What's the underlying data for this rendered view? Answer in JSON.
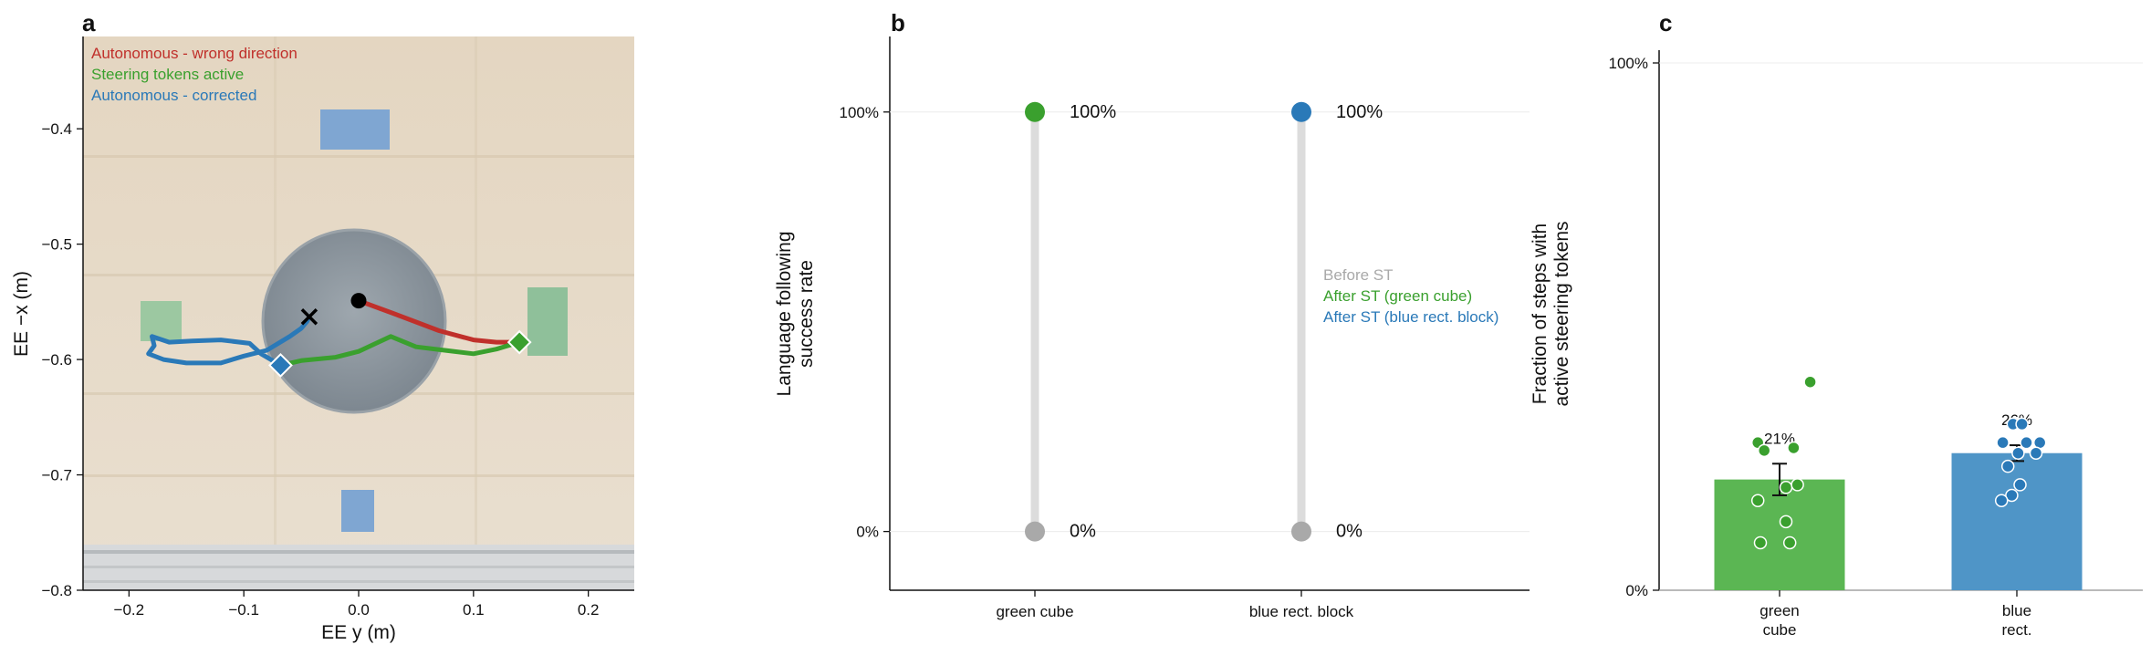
{
  "colors": {
    "red": "#c0302b",
    "green": "#3aa02e",
    "blue": "#2a79b8",
    "gray": "#a9a9a9",
    "bar_green": "#5bb653",
    "bar_blue": "#4f95c7",
    "stem": "#dcdcdc"
  },
  "chart_data": [
    {
      "panel": "a",
      "type": "line",
      "xlabel": "EE y (m)",
      "ylabel": "EE −x (m)",
      "xlim": [
        -0.24,
        0.24
      ],
      "ylim": [
        -0.8,
        -0.32
      ],
      "xticks": [
        "−0.2",
        "−0.1",
        "0.0",
        "0.1",
        "0.2"
      ],
      "xtick_values": [
        -0.2,
        -0.1,
        0.0,
        0.1,
        0.2
      ],
      "yticks": [
        "−0.4",
        "−0.5",
        "−0.6",
        "−0.7",
        "−0.8"
      ],
      "ytick_values": [
        -0.4,
        -0.5,
        -0.6,
        -0.7,
        -0.8
      ],
      "legend": [
        "Autonomous - wrong direction",
        "Steering tokens active",
        "Autonomous - corrected"
      ],
      "legend_position": "top-left",
      "start_point": [
        0.0,
        -0.549
      ],
      "x_marker": [
        -0.043,
        -0.563
      ],
      "series": [
        {
          "name": "Autonomous - wrong direction",
          "color": "red",
          "points": [
            [
              0.0,
              -0.549
            ],
            [
              0.03,
              -0.56
            ],
            [
              0.07,
              -0.575
            ],
            [
              0.1,
              -0.583
            ],
            [
              0.12,
              -0.585
            ],
            [
              0.14,
              -0.585
            ]
          ]
        },
        {
          "name": "Steering tokens active",
          "color": "green",
          "points": [
            [
              0.14,
              -0.585
            ],
            [
              0.12,
              -0.591
            ],
            [
              0.1,
              -0.595
            ],
            [
              0.075,
              -0.592
            ],
            [
              0.05,
              -0.589
            ],
            [
              0.028,
              -0.58
            ],
            [
              0.015,
              -0.586
            ],
            [
              0.0,
              -0.593
            ],
            [
              -0.02,
              -0.598
            ],
            [
              -0.05,
              -0.601
            ],
            [
              -0.068,
              -0.605
            ]
          ]
        },
        {
          "name": "Autonomous - corrected",
          "color": "blue",
          "points": [
            [
              -0.068,
              -0.605
            ],
            [
              -0.085,
              -0.595
            ],
            [
              -0.095,
              -0.586
            ],
            [
              -0.12,
              -0.583
            ],
            [
              -0.145,
              -0.584
            ],
            [
              -0.165,
              -0.585
            ],
            [
              -0.18,
              -0.58
            ],
            [
              -0.178,
              -0.588
            ],
            [
              -0.183,
              -0.595
            ],
            [
              -0.17,
              -0.6
            ],
            [
              -0.15,
              -0.603
            ],
            [
              -0.12,
              -0.603
            ],
            [
              -0.1,
              -0.597
            ],
            [
              -0.08,
              -0.592
            ],
            [
              -0.06,
              -0.58
            ],
            [
              -0.05,
              -0.573
            ],
            [
              -0.045,
              -0.567
            ],
            [
              -0.043,
              -0.563
            ]
          ]
        }
      ],
      "end_markers": [
        {
          "color": "green",
          "point": [
            0.14,
            -0.585
          ]
        },
        {
          "color": "blue",
          "point": [
            -0.068,
            -0.605
          ]
        }
      ]
    },
    {
      "panel": "b",
      "type": "scatter",
      "ylabel": "Language following\nsuccess rate",
      "categories": [
        "green cube",
        "blue rect. block"
      ],
      "yticks": [
        "0%",
        "100%"
      ],
      "ylim": [
        -0.14,
        1.18
      ],
      "legend": [
        "Before ST",
        "After ST (green cube)",
        "After ST (blue rect. block)"
      ],
      "legend_position": "center-right",
      "series": [
        {
          "name": "Before ST",
          "color": "gray",
          "values": [
            0,
            0
          ],
          "labels": [
            "0%",
            "0%"
          ]
        },
        {
          "name": "After ST",
          "colors": [
            "green",
            "blue"
          ],
          "values": [
            1,
            1
          ],
          "labels": [
            "100%",
            "100%"
          ]
        }
      ]
    },
    {
      "panel": "c",
      "type": "bar",
      "ylabel": "Fraction of steps with\nactive steering tokens",
      "categories": [
        "green\ncube",
        "blue\nrect."
      ],
      "values": [
        0.21,
        0.26
      ],
      "value_labels": [
        "21%",
        "26%"
      ],
      "errors": [
        0.03,
        0.015
      ],
      "yticks": [
        "0%",
        "100%"
      ],
      "ylim": [
        0,
        1
      ],
      "colors": [
        "bar_green",
        "bar_blue"
      ],
      "points": [
        [
          0.395,
          0.28,
          0.265,
          0.27,
          0.195,
          0.17,
          0.2,
          0.13,
          0.09,
          0.09
        ],
        [
          0.315,
          0.315,
          0.28,
          0.28,
          0.28,
          0.26,
          0.26,
          0.235,
          0.2,
          0.18,
          0.17
        ]
      ]
    }
  ],
  "panels": {
    "a": "a",
    "b": "b",
    "c": "c"
  }
}
